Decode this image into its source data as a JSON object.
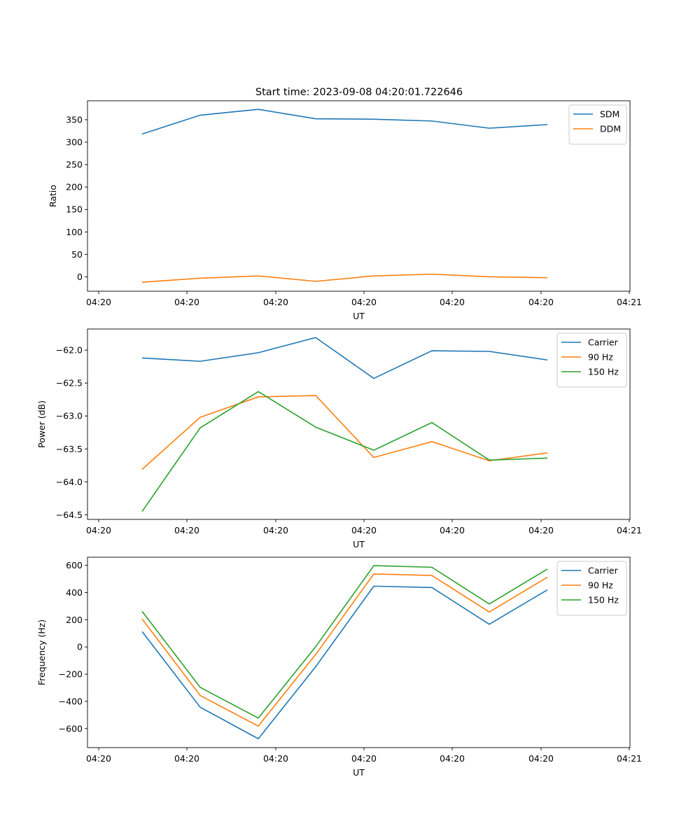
{
  "title": "Start time: 2023-09-08 04:20:01.722646",
  "chart_data": [
    {
      "type": "line",
      "ylabel": "Ratio",
      "xlabel": "UT",
      "ylim": [
        -32,
        392
      ],
      "yticks": [
        0,
        50,
        100,
        150,
        200,
        250,
        300,
        350
      ],
      "xtick_labels": [
        "04:20",
        "04:20",
        "04:20",
        "04:20",
        "04:20",
        "04:20",
        "04:20",
        "04:21"
      ],
      "legend": "top-right",
      "series": [
        {
          "name": "SDM",
          "color": "#1f77b4",
          "values": [
            318,
            360,
            373,
            352,
            351,
            347,
            331,
            339
          ]
        },
        {
          "name": "DDM",
          "color": "#ff7f0e",
          "values": [
            -12,
            -3,
            2,
            -10,
            2,
            6,
            0,
            -2
          ]
        }
      ]
    },
    {
      "type": "line",
      "ylabel": "Power (dB)",
      "xlabel": "UT",
      "ylim": [
        -64.57,
        -61.68
      ],
      "yticks": [
        -64.5,
        -64.0,
        -63.5,
        -63.0,
        -62.5,
        -62.0
      ],
      "ytick_labels": [
        "−64.5",
        "−64.0",
        "−63.5",
        "−63.0",
        "−62.5",
        "−62.0"
      ],
      "xtick_labels": [
        "04:20",
        "04:20",
        "04:20",
        "04:20",
        "04:20",
        "04:20",
        "04:20",
        "04:21"
      ],
      "legend": "top-right",
      "series": [
        {
          "name": "Carrier",
          "color": "#1f77b4",
          "values": [
            -62.12,
            -62.17,
            -62.04,
            -61.81,
            -62.43,
            -62.01,
            -62.02,
            -62.15
          ]
        },
        {
          "name": "90 Hz",
          "color": "#ff7f0e",
          "values": [
            -63.81,
            -63.02,
            -62.71,
            -62.69,
            -63.63,
            -63.39,
            -63.68,
            -63.56
          ]
        },
        {
          "name": "150 Hz",
          "color": "#2ca02c",
          "values": [
            -64.45,
            -63.18,
            -62.63,
            -63.17,
            -63.52,
            -63.1,
            -63.67,
            -63.64
          ]
        }
      ]
    },
    {
      "type": "line",
      "ylabel": "Frequency (Hz)",
      "xlabel": "UT",
      "ylim": [
        -740,
        660
      ],
      "yticks": [
        -600,
        -400,
        -200,
        0,
        200,
        400,
        600
      ],
      "ytick_labels": [
        "−600",
        "−400",
        "−200",
        "0",
        "200",
        "400",
        "600"
      ],
      "xtick_labels": [
        "04:20",
        "04:20",
        "04:20",
        "04:20",
        "04:20",
        "04:20",
        "04:20",
        "04:21"
      ],
      "legend": "top-right",
      "series": [
        {
          "name": "Carrier",
          "color": "#1f77b4",
          "values": [
            113,
            -443,
            -675,
            -145,
            447,
            437,
            167,
            420
          ]
        },
        {
          "name": "90 Hz",
          "color": "#ff7f0e",
          "values": [
            206,
            -357,
            -582,
            -55,
            537,
            526,
            257,
            513
          ]
        },
        {
          "name": "150 Hz",
          "color": "#2ca02c",
          "values": [
            262,
            -297,
            -523,
            2,
            598,
            586,
            316,
            573
          ]
        }
      ]
    }
  ]
}
